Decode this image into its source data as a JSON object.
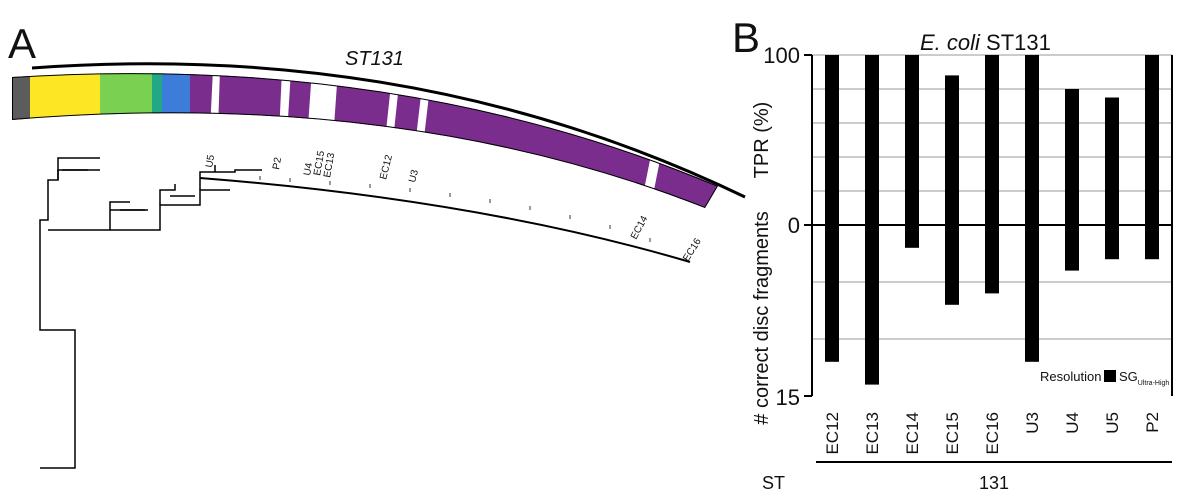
{
  "panel_a": {
    "label": "A",
    "clade_label": "ST131",
    "leaf_labels": [
      "U5",
      "P2",
      "U4",
      "EC15",
      "EC13",
      "EC12",
      "U3",
      "EC14",
      "EC16"
    ],
    "strip_colors": [
      "#5c5c5c",
      "#fde725",
      "#7ad151",
      "#22a884",
      "#3b7dd8",
      "#7b2d8e"
    ]
  },
  "panel_b": {
    "label": "B",
    "title_italic": "E. coli",
    "title_rest": " ST131",
    "legend_label": "Resolution",
    "legend_series": "SG",
    "legend_series_sub": "Ultra-High",
    "st_label": "ST",
    "st_value": "131"
  },
  "chart_data": {
    "type": "bar",
    "categories": [
      "EC12",
      "EC13",
      "EC14",
      "EC15",
      "EC16",
      "U3",
      "U4",
      "U5",
      "P2"
    ],
    "series": [
      {
        "name": "TPR (%)",
        "values": [
          100,
          100,
          100,
          88,
          100,
          100,
          80,
          75,
          100
        ]
      },
      {
        "name": "# correct disc fragments",
        "values": [
          12,
          14,
          2,
          7,
          6,
          12,
          4,
          3,
          3
        ]
      }
    ],
    "ylabel_top": "TPR (%)",
    "ylabel_bottom": "# correct disc fragments",
    "ylim_top": [
      0,
      100
    ],
    "ylim_bottom": [
      0,
      15
    ],
    "yticks_top": [
      "100",
      "0"
    ],
    "yticks_bottom": [
      "15"
    ],
    "grid": true,
    "bar_color": "#000000",
    "grid_color": "#cccccc"
  }
}
